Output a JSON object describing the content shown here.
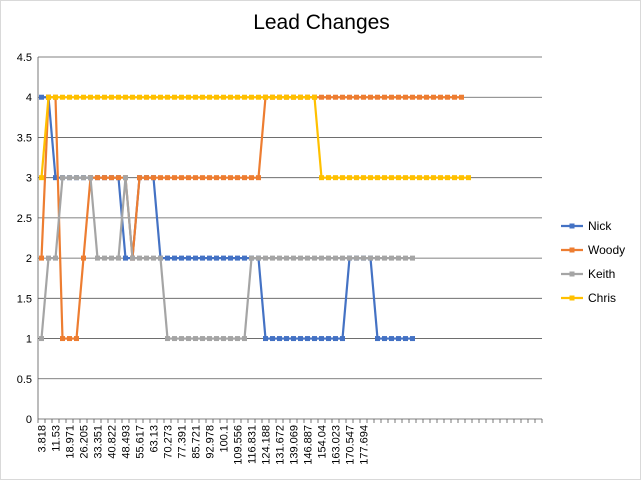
{
  "chart_data": {
    "type": "line",
    "title": "Lead Changes",
    "xlabel": "",
    "ylabel": "",
    "ylim": [
      0,
      4.5
    ],
    "yticks": [
      "0",
      "0.5",
      "1",
      "1.5",
      "2",
      "2.5",
      "3",
      "3.5",
      "4",
      "4.5"
    ],
    "grid": true,
    "legend_position": "right",
    "x_tick_labels": [
      "3.818",
      "11.53",
      "18.971",
      "26.205",
      "33.351",
      "40.822",
      "48.493",
      "55.617",
      "63.13",
      "70.273",
      "77.391",
      "85.721",
      "92.978",
      "100.1",
      "109.556",
      "116.831",
      "124.188",
      "131.672",
      "139.069",
      "146.887",
      "154.04",
      "163.023",
      "170.547",
      "177.694"
    ],
    "series": [
      {
        "name": "Nick",
        "color": "#4472c4",
        "values": [
          4,
          4,
          3,
          3,
          3,
          3,
          3,
          3,
          3,
          3,
          3,
          3,
          2,
          2,
          3,
          3,
          3,
          2,
          2,
          2,
          2,
          2,
          2,
          2,
          2,
          2,
          2,
          2,
          2,
          2,
          2,
          2,
          1,
          1,
          1,
          1,
          1,
          1,
          1,
          1,
          1,
          1,
          1,
          1,
          2,
          2,
          2,
          2,
          1,
          1,
          1,
          1,
          1,
          1
        ]
      },
      {
        "name": "Woody",
        "color": "#ed7d31",
        "values": [
          2,
          4,
          4,
          1,
          1,
          1,
          2,
          3,
          3,
          3,
          3,
          3,
          3,
          2,
          3,
          3,
          3,
          3,
          3,
          3,
          3,
          3,
          3,
          3,
          3,
          3,
          3,
          3,
          3,
          3,
          3,
          3,
          4,
          4,
          4,
          4,
          4,
          4,
          4,
          4,
          4,
          4,
          4,
          4,
          4,
          4,
          4,
          4,
          4,
          4,
          4,
          4,
          4,
          4,
          4,
          4,
          4,
          4,
          4,
          4,
          4
        ]
      },
      {
        "name": "Keith",
        "color": "#a5a5a5",
        "values": [
          1,
          2,
          2,
          3,
          3,
          3,
          3,
          3,
          2,
          2,
          2,
          2,
          3,
          2,
          2,
          2,
          2,
          2,
          1,
          1,
          1,
          1,
          1,
          1,
          1,
          1,
          1,
          1,
          1,
          1,
          2,
          2,
          2,
          2,
          2,
          2,
          2,
          2,
          2,
          2,
          2,
          2,
          2,
          2,
          2,
          2,
          2,
          2,
          2,
          2,
          2,
          2,
          2,
          2
        ]
      },
      {
        "name": "Chris",
        "color": "#ffc000",
        "values": [
          3,
          4,
          4,
          4,
          4,
          4,
          4,
          4,
          4,
          4,
          4,
          4,
          4,
          4,
          4,
          4,
          4,
          4,
          4,
          4,
          4,
          4,
          4,
          4,
          4,
          4,
          4,
          4,
          4,
          4,
          4,
          4,
          4,
          4,
          4,
          4,
          4,
          4,
          4,
          4,
          3,
          3,
          3,
          3,
          3,
          3,
          3,
          3,
          3,
          3,
          3,
          3,
          3,
          3,
          3,
          3,
          3,
          3,
          3,
          3,
          3,
          3
        ]
      }
    ]
  }
}
